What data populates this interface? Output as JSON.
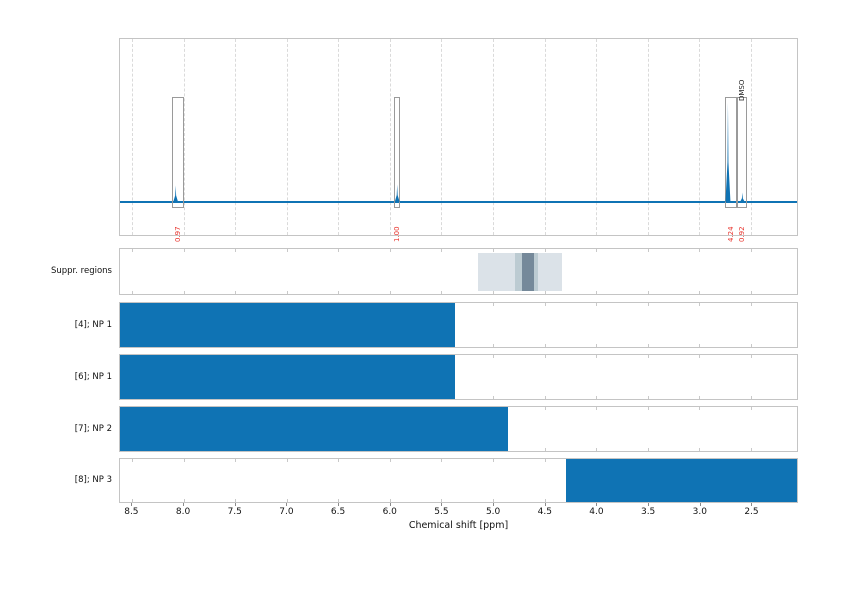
{
  "chart_data": {
    "type": "bar",
    "subtype": "nmr-spectrum-with-suppression-and-coverage-bars",
    "xlabel": "Chemical shift [ppm]",
    "x_axis": {
      "left_ppm": 8.62,
      "right_ppm": 2.05,
      "inverted": true,
      "ticks": [
        "8.5",
        "8.0",
        "7.5",
        "7.0",
        "6.5",
        "6.0",
        "5.5",
        "5.0",
        "4.5",
        "4.0",
        "3.5",
        "3.0",
        "2.5"
      ]
    },
    "spectrum_row": {
      "peaks": [
        {
          "ppm": 8.08,
          "height_frac": 0.086
        },
        {
          "ppm": 5.93,
          "height_frac": 0.091
        },
        {
          "ppm": 2.72,
          "height_frac": 0.51
        },
        {
          "ppm": 2.58,
          "height_frac": 0.05
        }
      ],
      "integral_regions": [
        {
          "from_ppm": 8.12,
          "to_ppm": 8.0,
          "label": "0.97"
        },
        {
          "from_ppm": 5.96,
          "to_ppm": 5.9,
          "label": "1.00"
        },
        {
          "from_ppm": 2.75,
          "to_ppm": 2.63,
          "label": "4.24"
        },
        {
          "from_ppm": 2.63,
          "to_ppm": 2.54,
          "label": "0.92",
          "annotation": "DMSO"
        }
      ]
    },
    "suppression_row": {
      "label": "Suppr. regions",
      "regions": [
        {
          "from_ppm": 5.15,
          "to_ppm": 4.33,
          "color": "#dbe2e8"
        },
        {
          "from_ppm": 4.79,
          "to_ppm": 4.56,
          "color": "#bccbd2"
        },
        {
          "from_ppm": 4.72,
          "to_ppm": 4.6,
          "color": "#75899a"
        }
      ]
    },
    "rows": [
      {
        "label": "[4]; NP 1",
        "from_ppm": 8.62,
        "to_ppm": 5.37
      },
      {
        "label": "[6]; NP 1",
        "from_ppm": 8.62,
        "to_ppm": 5.37
      },
      {
        "label": "[7]; NP 2",
        "from_ppm": 8.62,
        "to_ppm": 4.85
      },
      {
        "label": "[8]; NP 3",
        "from_ppm": 4.29,
        "to_ppm": 2.05
      }
    ],
    "colors": {
      "line_blue": "#0f73b4",
      "bar_blue": "#0f73b4",
      "integral_red": "#e8352e",
      "annotation_black": "#222222"
    }
  }
}
